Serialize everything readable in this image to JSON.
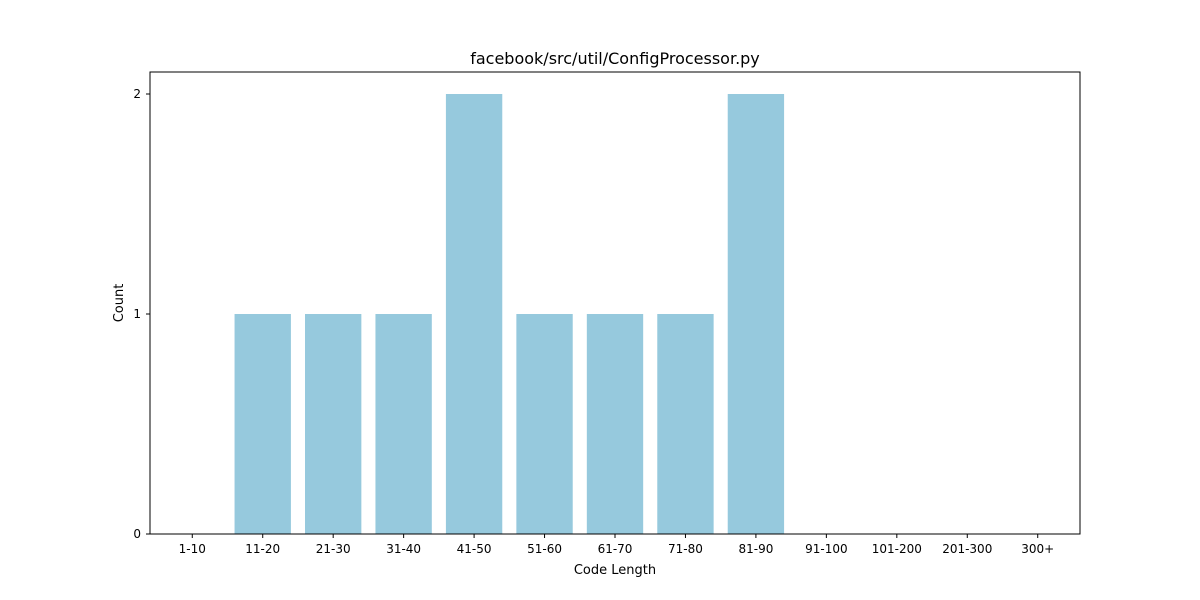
{
  "chart_data": {
    "type": "bar",
    "title": "facebook/src/util/ConfigProcessor.py",
    "xlabel": "Code Length",
    "ylabel": "Count",
    "categories": [
      "1-10",
      "11-20",
      "21-30",
      "31-40",
      "41-50",
      "51-60",
      "61-70",
      "71-80",
      "81-90",
      "91-100",
      "101-200",
      "201-300",
      "300+"
    ],
    "values": [
      0,
      1,
      1,
      1,
      2,
      1,
      1,
      1,
      2,
      0,
      0,
      0,
      0
    ],
    "yticks": [
      0,
      1,
      2
    ],
    "ylim": [
      0,
      2.1
    ],
    "bar_color": "#96c9dd",
    "grid": false,
    "legend": "none"
  }
}
